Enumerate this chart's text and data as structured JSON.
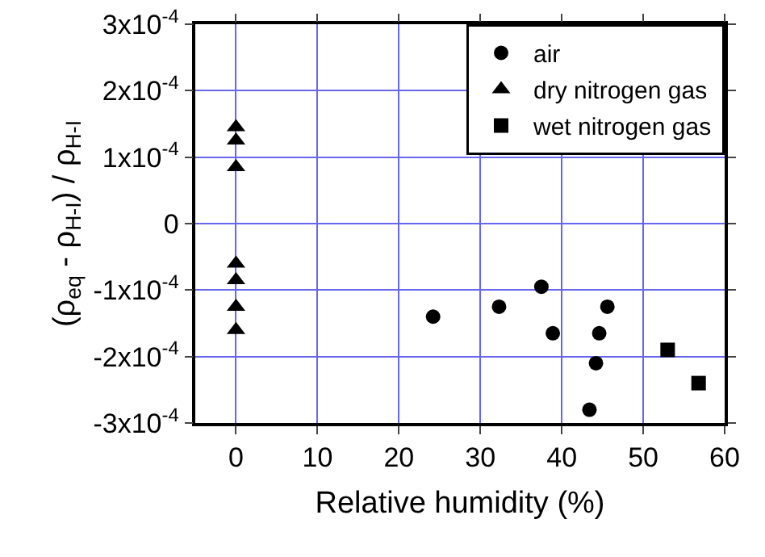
{
  "chart_data": {
    "type": "scatter",
    "xlabel": "Relative humidity (%)",
    "ylabel": "(ρ$_{eq}$ - ρ$_{H-I}$) / ρ$_{H-I}$",
    "xlim": [
      -5,
      60
    ],
    "xticks": [
      0,
      10,
      20,
      30,
      40,
      50,
      60
    ],
    "ylim": [
      -0.0003,
      0.0003
    ],
    "yticks": [
      {
        "value": 0.0003,
        "label": "3x10$^{-4}$"
      },
      {
        "value": 0.0002,
        "label": "2x10$^{-4}$"
      },
      {
        "value": 0.0001,
        "label": "1x10$^{-4}$"
      },
      0,
      {
        "value": -0.0001,
        "label": "-1x10$^{-4}$"
      },
      {
        "value": -0.0002,
        "label": "-2x10$^{-4}$"
      },
      {
        "value": -0.0003,
        "label": "-3x10$^{-4}$"
      }
    ],
    "grid": true,
    "legend": "top right",
    "series": [
      {
        "name": "air",
        "color": "#000000",
        "marker": "circle",
        "x": [
          24.2,
          32.3,
          37.5,
          38.9,
          45.6,
          44.6,
          44.2,
          43.4
        ],
        "values": [
          -0.00014,
          -0.000125,
          -9.5e-05,
          -0.000165,
          -0.000125,
          -0.000165,
          -0.00021,
          -0.00028
        ]
      },
      {
        "name": "dry nitrogen gas",
        "color": "#000000",
        "marker": "triangle",
        "x": [
          0,
          0,
          0,
          0,
          0,
          0,
          0
        ],
        "values": [
          0.000145,
          0.000125,
          8.5e-05,
          -6e-05,
          -8.5e-05,
          -0.000125,
          -0.00016
        ]
      },
      {
        "name": "wet nitrogen gas",
        "color": "#000000",
        "marker": "square",
        "x": [
          53.0,
          56.8
        ],
        "values": [
          -0.00019,
          -0.00024
        ]
      }
    ]
  }
}
